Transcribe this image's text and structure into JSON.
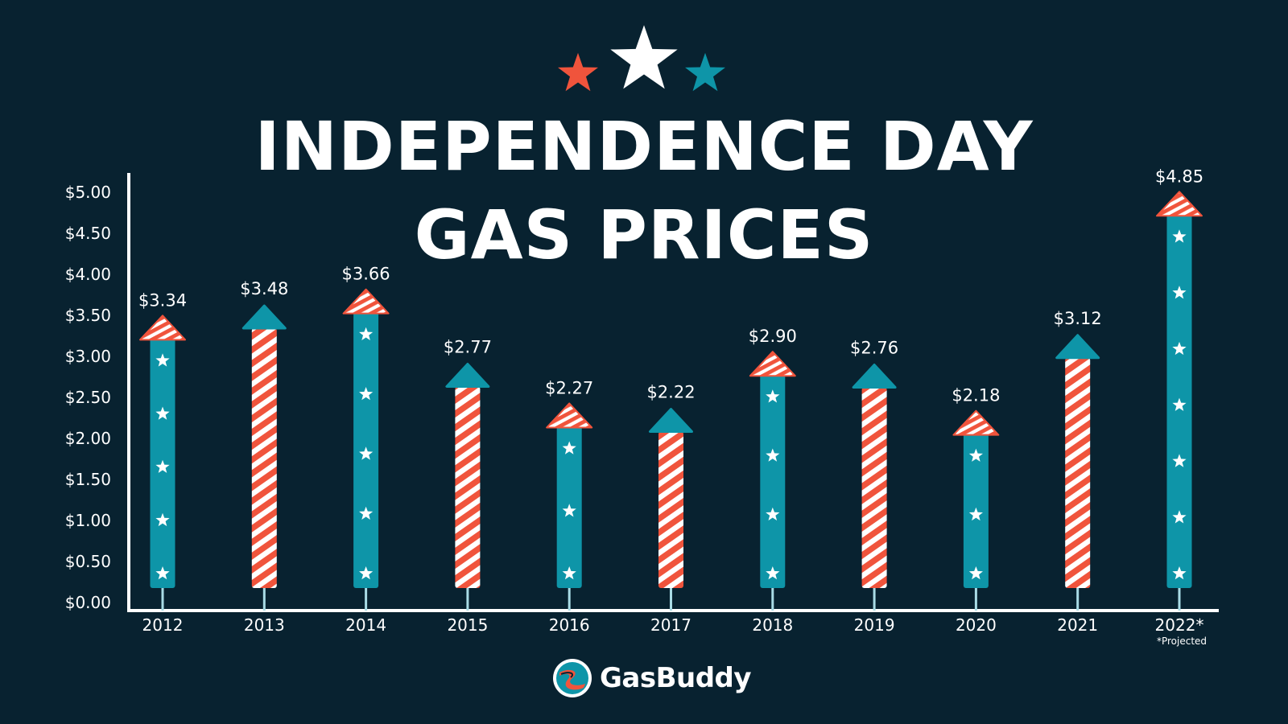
{
  "title": {
    "line1": "INDEPENDENCE DAY",
    "line2": "GAS PRICES"
  },
  "decoration": {
    "stars": [
      {
        "name": "red-star-icon",
        "color": "#f0543c"
      },
      {
        "name": "white-star-icon",
        "color": "#ffffff"
      },
      {
        "name": "teal-star-icon",
        "color": "#0e95a8"
      }
    ]
  },
  "colors": {
    "background": "#082230",
    "teal": "#0e95a8",
    "red": "#f0543c",
    "white": "#ffffff"
  },
  "chart_data": {
    "type": "bar",
    "categories": [
      "2012",
      "2013",
      "2014",
      "2015",
      "2016",
      "2017",
      "2018",
      "2019",
      "2020",
      "2021",
      "2022*"
    ],
    "values": [
      3.34,
      3.48,
      3.66,
      2.77,
      2.27,
      2.22,
      2.9,
      2.76,
      2.18,
      3.12,
      4.85
    ],
    "value_labels": [
      "$3.34",
      "$3.48",
      "$3.66",
      "$2.77",
      "$2.27",
      "$2.22",
      "$2.90",
      "$2.76",
      "$2.18",
      "$3.12",
      "$4.85"
    ],
    "bar_styles": [
      "teal-stars",
      "red-stripes",
      "teal-stars",
      "red-stripes",
      "teal-stars",
      "red-stripes",
      "teal-stars",
      "red-stripes",
      "teal-stars",
      "red-stripes",
      "teal-stars"
    ],
    "yticks": [
      "$0.00",
      "$0.50",
      "$1.00",
      "$1.50",
      "$2.00",
      "$2.50",
      "$3.00",
      "$3.50",
      "$4.00",
      "$4.50",
      "$5.00"
    ],
    "ylim": [
      0,
      5
    ],
    "footnote": "*Projected"
  },
  "brand": {
    "name": "GasBuddy",
    "logo_icon": "gasbuddy-logo-icon"
  }
}
